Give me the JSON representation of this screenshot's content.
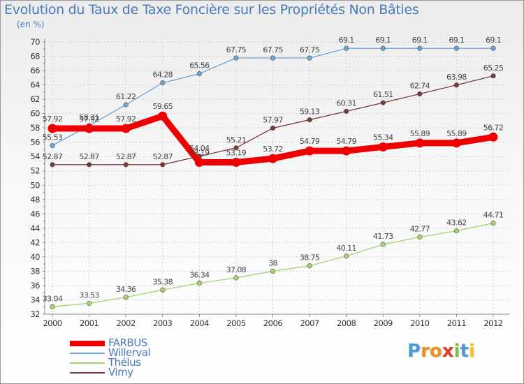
{
  "header": {
    "title": "Evolution du Taux de Taxe Foncière sur les Propriétés Non Bâties",
    "unit": "(en %)"
  },
  "chart_data": {
    "type": "line",
    "title": "Evolution du Taux de Taxe Foncière sur les Propriétés Non Bâties",
    "ylabel": "(en %)",
    "xlabel": "",
    "x": [
      "2000",
      "2001",
      "2002",
      "2003",
      "2004",
      "2005",
      "2006",
      "2007",
      "2008",
      "2009",
      "2010",
      "2011",
      "2012"
    ],
    "ylim": [
      32,
      70
    ],
    "yticks": [
      32,
      34,
      36,
      38,
      40,
      42,
      44,
      46,
      48,
      50,
      52,
      54,
      56,
      58,
      60,
      62,
      64,
      66,
      68,
      70
    ],
    "grid": true,
    "legend": "bottom-left",
    "series": [
      {
        "name": "FARBUS",
        "color": "#ee0000",
        "values": [
          57.92,
          57.92,
          57.92,
          59.65,
          53.19,
          53.19,
          53.72,
          54.79,
          54.79,
          55.34,
          55.89,
          55.89,
          56.72
        ],
        "labels": [
          "57.92",
          "57.92",
          "57.92",
          "59.65",
          "53.19",
          "53.19",
          "53.72",
          "54.79",
          "54.79",
          "55.34",
          "55.89",
          "55.89",
          "56.72"
        ]
      },
      {
        "name": "Willerval",
        "color": "#6fa3d6",
        "values": [
          55.53,
          58.31,
          61.22,
          64.28,
          65.56,
          67.75,
          67.75,
          67.75,
          69.1,
          69.1,
          69.1,
          69.1,
          69.1
        ],
        "labels": [
          "55.53",
          "58.31",
          "61.22",
          "64.28",
          "65.56",
          "67.75",
          "67.75",
          "67.75",
          "69.1",
          "69.1",
          "69.1",
          "69.1",
          "69.1"
        ]
      },
      {
        "name": "Thélus",
        "color": "#a5d46e",
        "values": [
          33.04,
          33.53,
          34.36,
          35.38,
          36.34,
          37.08,
          38,
          38.75,
          40.11,
          41.73,
          42.77,
          43.62,
          44.71
        ],
        "labels": [
          "33.04",
          "33.53",
          "34.36",
          "35.38",
          "36.34",
          "37.08",
          "38",
          "38.75",
          "40.11",
          "41.73",
          "42.77",
          "43.62",
          "44.71"
        ]
      },
      {
        "name": "Vimy",
        "color": "#7b3a3a",
        "values": [
          52.87,
          52.87,
          52.87,
          52.87,
          54.04,
          55.21,
          57.97,
          59.13,
          60.31,
          61.51,
          62.74,
          63.98,
          65.25
        ],
        "labels": [
          "52.87",
          "52.87",
          "52.87",
          "52.87",
          "54.04",
          "55.21",
          "57.97",
          "59.13",
          "60.31",
          "61.51",
          "62.74",
          "63.98",
          "65.25"
        ]
      }
    ]
  },
  "logo": {
    "letters": [
      "P",
      "r",
      "o",
      "x",
      "i",
      "t",
      "i"
    ],
    "colors": [
      "#4a9ad6",
      "#f08c1e",
      "#f08c1e",
      "#e03c2a",
      "#7cc242",
      "#4a9ad6",
      "#f5c518"
    ]
  }
}
